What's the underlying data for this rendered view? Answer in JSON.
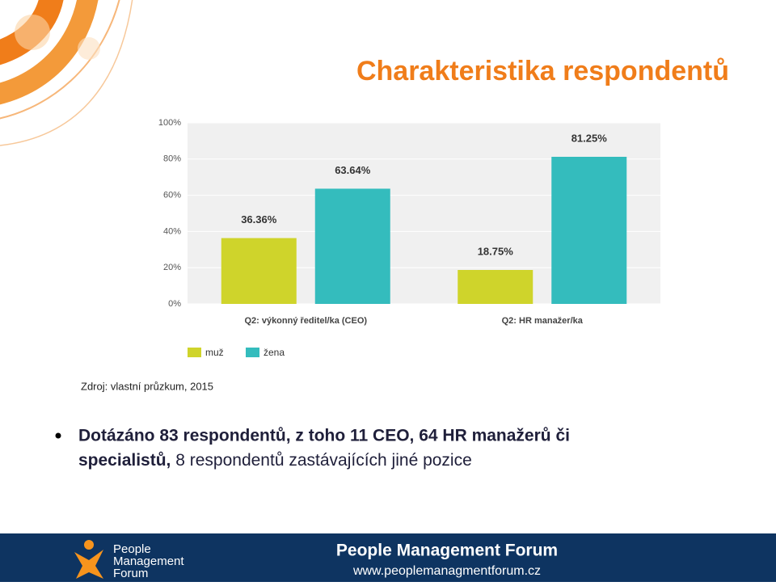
{
  "title": "Charakteristika respondentů",
  "chart_data": {
    "type": "bar",
    "categories": [
      "Q2: výkonný ředitel/ka (CEO)",
      "Q2: HR manažer/ka"
    ],
    "series": [
      {
        "name": "muž",
        "color": "#cfd42b",
        "values": [
          36.36,
          18.75
        ],
        "value_labels": [
          "36.36%",
          "18.75%"
        ]
      },
      {
        "name": "žena",
        "color": "#34bcbd",
        "values": [
          63.64,
          81.25
        ],
        "value_labels": [
          "63.64%",
          "81.25%"
        ]
      }
    ],
    "ylim": [
      0,
      100
    ],
    "yticks": [
      {
        "value": 0,
        "label": "0%"
      },
      {
        "value": 20,
        "label": "20%"
      },
      {
        "value": 40,
        "label": "40%"
      },
      {
        "value": 60,
        "label": "60%"
      },
      {
        "value": 80,
        "label": "80%"
      },
      {
        "value": 100,
        "label": "100%"
      }
    ],
    "grid": true,
    "legend": "bottom"
  },
  "source": "Zdroj: vlastní průzkum, 2015",
  "bullet": {
    "bold": "Dotázáno 83 respondentů, z toho  11 CEO, 64 HR manažerů či",
    "bold2": "specialistů,",
    "normal": " 8 respondentů zastávajících jiné pozice"
  },
  "footer": {
    "logo_lines": [
      "People",
      "Management",
      "Forum"
    ],
    "name": "People Management Forum",
    "url": "www.peoplemanagmentforum.cz"
  }
}
